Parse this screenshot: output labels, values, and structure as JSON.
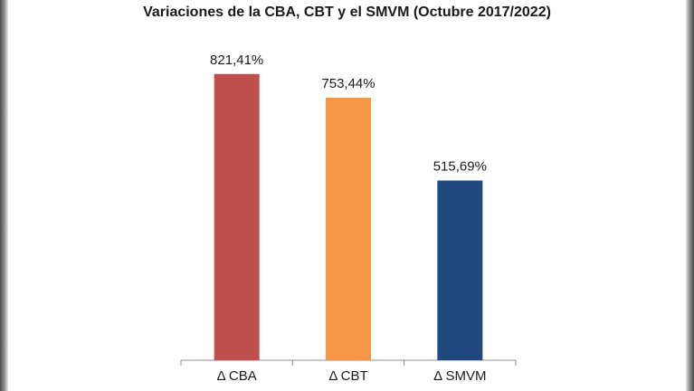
{
  "chart_data": {
    "type": "bar",
    "title": "Variaciones de la CBA, CBT y el SMVM (Octubre 2017/2022)",
    "categories": [
      "Δ CBA",
      "Δ CBT",
      "Δ SMVM"
    ],
    "values": [
      821.41,
      753.44,
      515.69
    ],
    "value_labels": [
      "821,41%",
      "753,44%",
      "515,69%"
    ],
    "colors": [
      "#c0504d",
      "#f79646",
      "#1f497d"
    ],
    "ylim": [
      0,
      1000
    ],
    "grid": false,
    "legend": "none"
  }
}
